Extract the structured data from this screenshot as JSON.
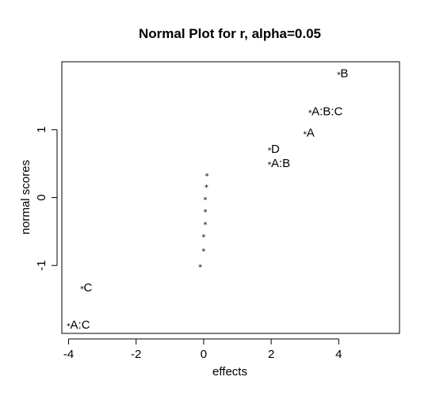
{
  "chart_data": {
    "type": "scatter",
    "title": "Normal Plot for r, alpha=0.05",
    "xlabel": "effects",
    "ylabel": "normal scores",
    "xlim": [
      -4.2,
      5.8
    ],
    "ylim": [
      -2.0,
      2.0
    ],
    "xticks": [
      -4,
      -2,
      0,
      2,
      4
    ],
    "yticks": [
      -1,
      0,
      1
    ],
    "marker": "*",
    "color": "#000000",
    "points": [
      {
        "x": -4.0,
        "y": -1.86,
        "label": "A:C"
      },
      {
        "x": -3.6,
        "y": -1.31,
        "label": "C"
      },
      {
        "x": -0.1,
        "y": -0.99,
        "label": ""
      },
      {
        "x": 0.0,
        "y": -0.76,
        "label": ""
      },
      {
        "x": 0.0,
        "y": -0.55,
        "label": ""
      },
      {
        "x": 0.05,
        "y": -0.37,
        "label": ""
      },
      {
        "x": 0.05,
        "y": -0.18,
        "label": ""
      },
      {
        "x": 0.05,
        "y": 0.0,
        "label": ""
      },
      {
        "x": 0.08,
        "y": 0.18,
        "label": ""
      },
      {
        "x": 0.1,
        "y": 0.35,
        "label": ""
      },
      {
        "x": 1.95,
        "y": 0.52,
        "label": "A:B"
      },
      {
        "x": 1.95,
        "y": 0.73,
        "label": "D"
      },
      {
        "x": 3.0,
        "y": 0.97,
        "label": "A"
      },
      {
        "x": 3.15,
        "y": 1.28,
        "label": "A:B:C"
      },
      {
        "x": 4.0,
        "y": 1.84,
        "label": "B"
      }
    ]
  }
}
